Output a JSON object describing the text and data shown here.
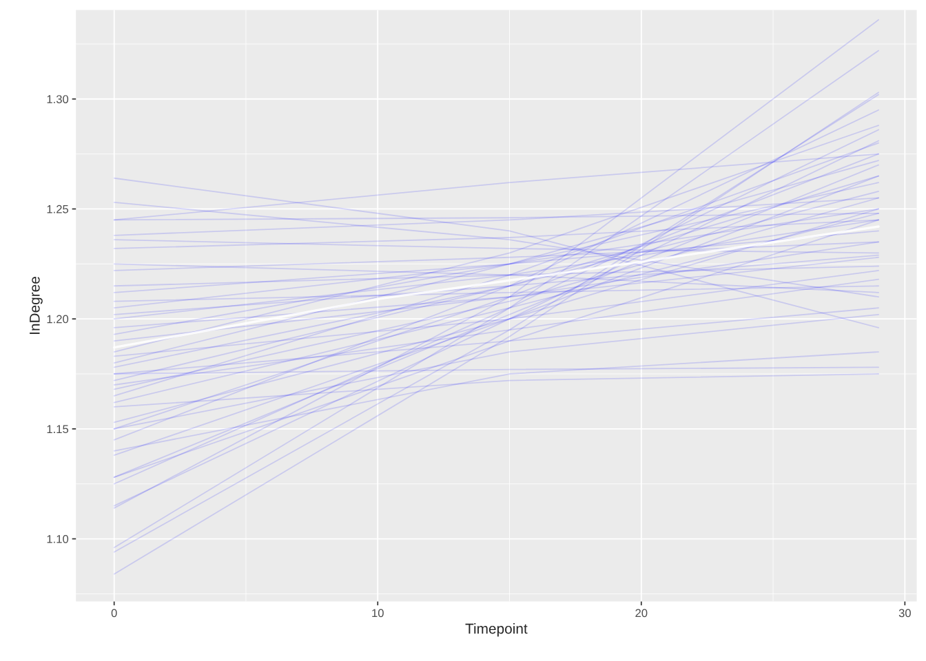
{
  "chart_data": {
    "type": "line",
    "xlabel": "Timepoint",
    "ylabel": "InDegree",
    "x": [
      0,
      15,
      29
    ],
    "xlim": [
      -1.45,
      30.45
    ],
    "xticks": [
      0,
      10,
      20,
      30
    ],
    "ylim": [
      1.0715,
      1.3405
    ],
    "yticks": [
      {
        "value": 1.1,
        "label": "1.10"
      },
      1.15,
      {
        "value": 1.2,
        "label": "1.20"
      },
      1.25,
      {
        "value": 1.3,
        "label": "1.30"
      }
    ],
    "grid": true,
    "marker": "none",
    "line_style": "solid",
    "series": [
      {
        "color": "#0000ff",
        "values": [
          1.084,
          1.192,
          1.303
        ]
      },
      {
        "color": "#0000ff",
        "values": [
          1.094,
          1.195,
          1.302
        ]
      },
      {
        "color": "#0000ff",
        "values": [
          1.096,
          1.205,
          1.322
        ]
      },
      {
        "color": "#0000ff",
        "values": [
          1.114,
          1.21,
          1.336
        ]
      },
      {
        "color": "#0000ff",
        "values": [
          1.115,
          1.2,
          1.281
        ]
      },
      {
        "color": "#0000ff",
        "values": [
          1.125,
          1.205,
          1.286
        ]
      },
      {
        "color": "#0000ff",
        "values": [
          1.128,
          1.202,
          1.27
        ]
      },
      {
        "color": "#0000ff",
        "values": [
          1.138,
          1.2,
          1.265
        ]
      },
      {
        "color": "#0000ff",
        "values": [
          1.145,
          1.215,
          1.295
        ]
      },
      {
        "color": "#0000ff",
        "values": [
          1.15,
          1.21,
          1.275
        ]
      },
      {
        "color": "#0000ff",
        "values": [
          1.153,
          1.2,
          1.25
        ]
      },
      {
        "color": "#0000ff",
        "values": [
          1.162,
          1.205,
          1.248
        ]
      },
      {
        "color": "#0000ff",
        "values": [
          1.165,
          1.22,
          1.28
        ]
      },
      {
        "color": "#0000ff",
        "values": [
          1.168,
          1.208,
          1.255
        ]
      },
      {
        "color": "#0000ff",
        "values": [
          1.172,
          1.215,
          1.265
        ]
      },
      {
        "color": "#0000ff",
        "values": [
          1.175,
          1.19,
          1.205
        ]
      },
      {
        "color": "#0000ff",
        "values": [
          1.178,
          1.215,
          1.258
        ]
      },
      {
        "color": "#0000ff",
        "values": [
          1.18,
          1.225,
          1.272
        ]
      },
      {
        "color": "#0000ff",
        "values": [
          1.183,
          1.2,
          1.222
        ]
      },
      {
        "color": "#0000ff",
        "values": [
          1.185,
          1.23,
          1.288
        ]
      },
      {
        "color": "#0000ff",
        "values": [
          1.19,
          1.21,
          1.235
        ]
      },
      {
        "color": "#0000ff",
        "values": [
          1.193,
          1.225,
          1.262
        ]
      },
      {
        "color": "#0000ff",
        "values": [
          1.196,
          1.21,
          1.228
        ]
      },
      {
        "color": "#0000ff",
        "values": [
          1.2,
          1.22,
          1.245
        ]
      },
      {
        "color": "#0000ff",
        "values": [
          1.202,
          1.215,
          1.229
        ]
      },
      {
        "color": "#0000ff",
        "values": [
          1.205,
          1.225,
          1.25
        ]
      },
      {
        "color": "#0000ff",
        "values": [
          1.208,
          1.212,
          1.215
        ]
      },
      {
        "color": "#0000ff",
        "values": [
          1.212,
          1.225,
          1.24
        ]
      },
      {
        "color": "#0000ff",
        "values": [
          1.215,
          1.22,
          1.224
        ]
      },
      {
        "color": "#0000ff",
        "values": [
          1.222,
          1.228,
          1.235
        ]
      },
      {
        "color": "#0000ff",
        "values": [
          1.225,
          1.22,
          1.212
        ]
      },
      {
        "color": "#0000ff",
        "values": [
          1.232,
          1.237,
          1.245
        ]
      },
      {
        "color": "#0000ff",
        "values": [
          1.236,
          1.232,
          1.23
        ]
      },
      {
        "color": "#0000ff",
        "values": [
          1.238,
          1.245,
          1.255
        ]
      },
      {
        "color": "#0000ff",
        "values": [
          1.245,
          1.246,
          1.248
        ]
      },
      {
        "color": "#0000ff",
        "values": [
          1.253,
          1.236,
          1.21
        ]
      },
      {
        "color": "#0000ff",
        "values": [
          1.264,
          1.24,
          1.196
        ]
      },
      {
        "color": "#0000ff",
        "values": [
          1.175,
          1.177,
          1.178
        ]
      },
      {
        "color": "#0000ff",
        "values": [
          1.16,
          1.172,
          1.175
        ]
      },
      {
        "color": "#0000ff",
        "values": [
          1.14,
          1.175,
          1.185
        ]
      },
      {
        "color": "#0000ff",
        "values": [
          1.15,
          1.185,
          1.202
        ]
      },
      {
        "color": "#0000ff",
        "values": [
          1.245,
          1.262,
          1.275
        ]
      },
      {
        "color": "#0000ff",
        "values": [
          1.128,
          1.19,
          1.245
        ]
      },
      {
        "color": "#0000ff",
        "values": [
          1.17,
          1.195,
          1.218
        ]
      },
      {
        "color": "#ffffff",
        "x": [
          0,
          10,
          20,
          29
        ],
        "values": [
          1.187,
          1.209,
          1.226,
          1.242
        ]
      }
    ]
  }
}
